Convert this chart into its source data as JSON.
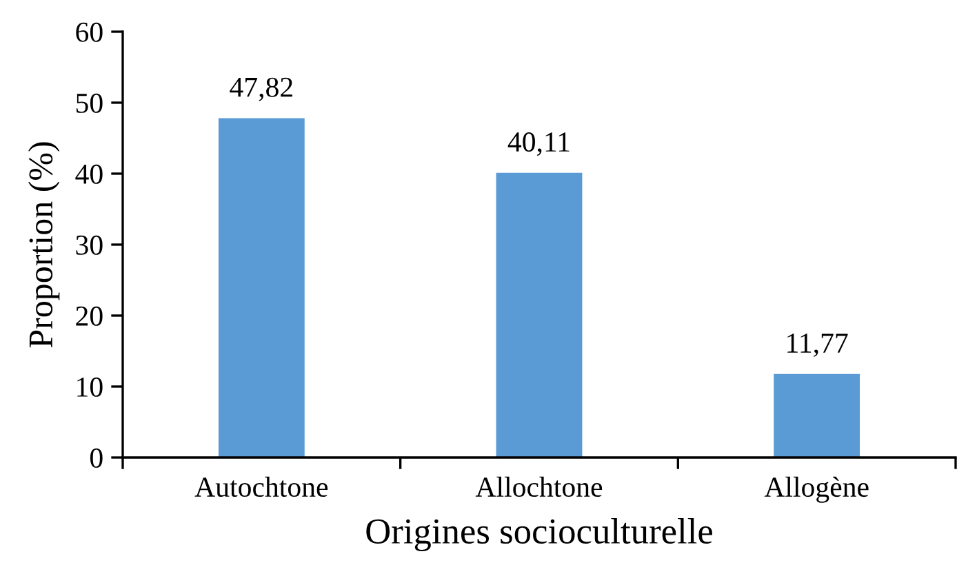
{
  "chart_data": {
    "type": "bar",
    "xlabel": "Origines socioculturelle",
    "ylabel": "Proportion (%)",
    "categories": [
      "Autochtone",
      "Allochtone",
      "Allogène"
    ],
    "values": [
      47.82,
      40.11,
      11.77
    ],
    "value_labels": [
      "47,82",
      "40,11",
      "11,77"
    ],
    "color": "#5b9bd5",
    "ylim": [
      0,
      60
    ],
    "yticks": [
      0,
      10,
      20,
      30,
      40,
      50,
      60
    ],
    "grid": false,
    "legend": false
  }
}
